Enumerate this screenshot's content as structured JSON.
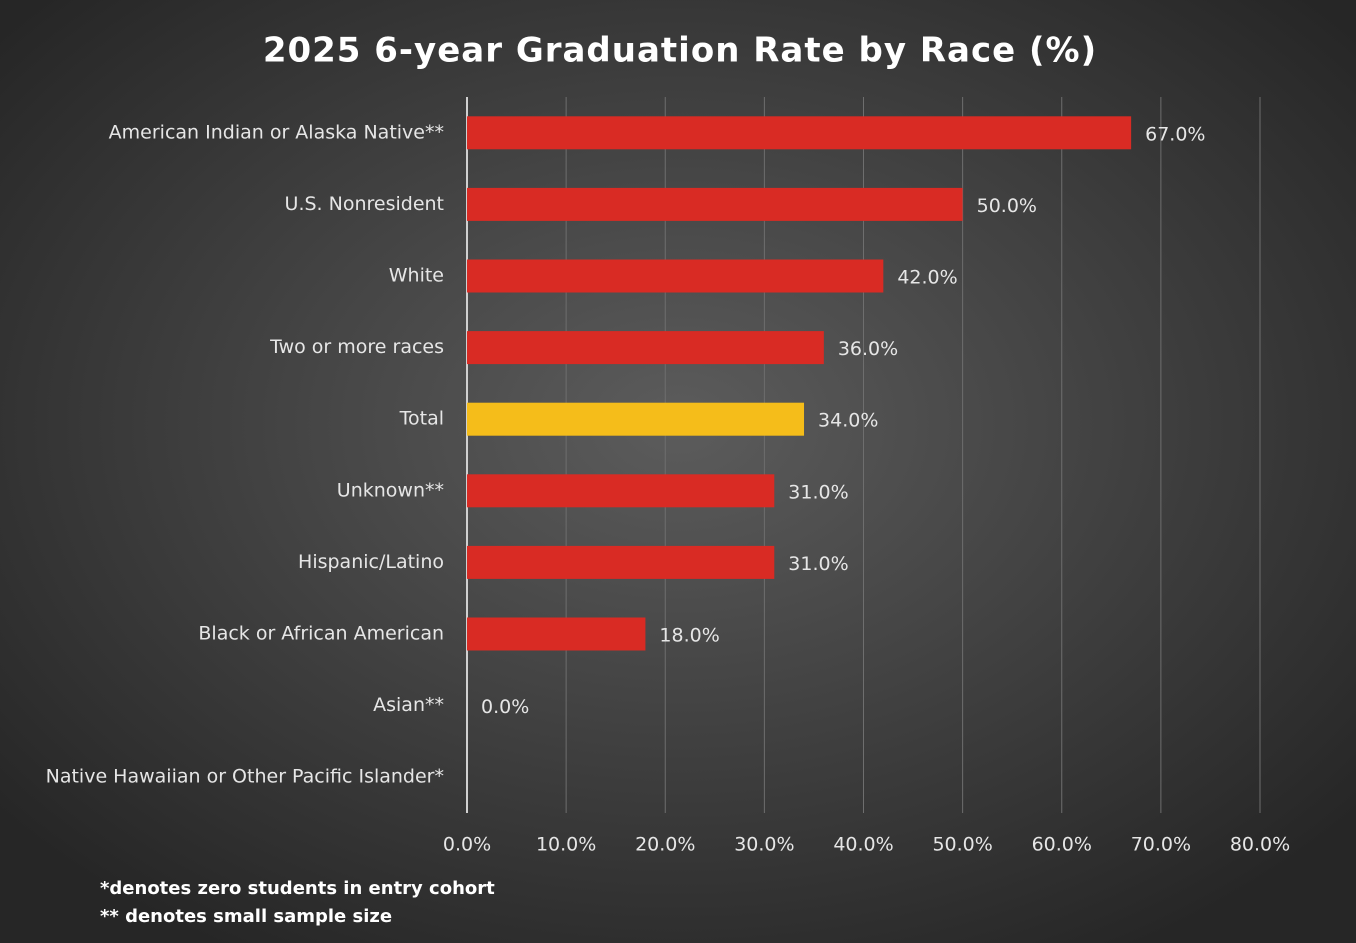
{
  "chart_data": {
    "type": "bar",
    "orientation": "horizontal",
    "title": "2025 6-year Graduation Rate by Race (%)",
    "categories": [
      "American Indian or Alaska Native**",
      "U.S. Nonresident",
      "White",
      "Two or more races",
      "Total",
      "Unknown**",
      "Hispanic/Latino",
      "Black or African American",
      "Asian**",
      "Native Hawaiian or Other Pacific Islander*"
    ],
    "values": [
      67,
      50,
      42,
      36,
      34,
      31,
      31,
      18,
      0,
      null
    ],
    "value_labels": [
      "67.0%",
      "50.0%",
      "42.0%",
      "36.0%",
      "34.0%",
      "31.0%",
      "31.0%",
      "18.0%",
      "0.0%",
      null
    ],
    "colors": [
      "#d92b24",
      "#d92b24",
      "#d92b24",
      "#d92b24",
      "#f5bd1a",
      "#d92b24",
      "#d92b24",
      "#d92b24",
      "#d92b24",
      "#d92b24"
    ],
    "xlim": [
      0,
      80
    ],
    "xticks": [
      {
        "value": 0,
        "label": "0.0%"
      },
      {
        "value": 10,
        "label": "10.0%"
      },
      {
        "value": 20,
        "label": "20.0%"
      },
      {
        "value": 30,
        "label": "30.0%"
      },
      {
        "value": 40,
        "label": "40.0%"
      },
      {
        "value": 50,
        "label": "50.0%"
      },
      {
        "value": 60,
        "label": "60.0%"
      },
      {
        "value": 70,
        "label": "70.0%"
      },
      {
        "value": 80,
        "label": "80.0%"
      }
    ],
    "grid": true,
    "annotations": [
      "*denotes zero students in entry cohort",
      "** denotes small sample size"
    ]
  }
}
